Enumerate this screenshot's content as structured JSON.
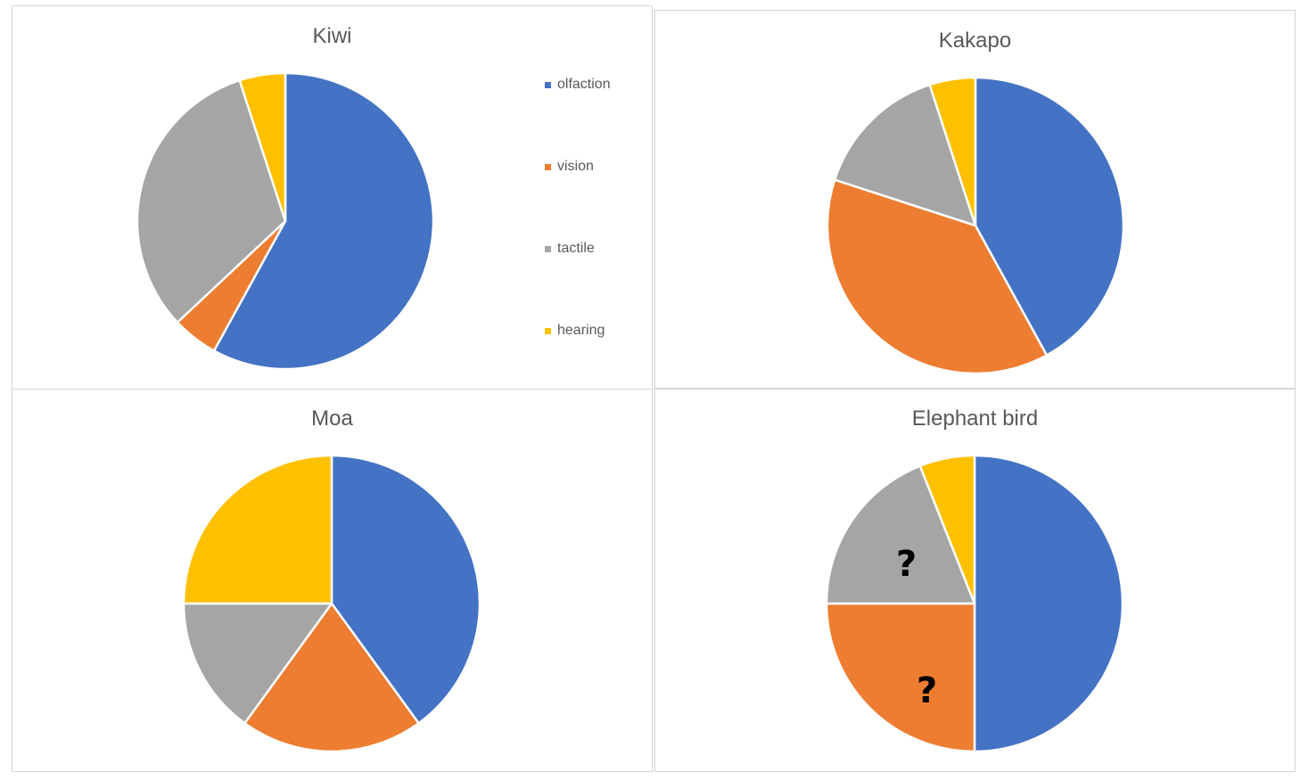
{
  "colors": {
    "olfaction": "#4472C4",
    "vision": "#ED7D31",
    "tactile": "#A5A5A5",
    "hearing": "#FFC000"
  },
  "legend": {
    "placement": "right",
    "entries": [
      "olfaction",
      "vision",
      "tactile",
      "hearing"
    ]
  },
  "chart_data": [
    {
      "type": "pie",
      "title": "Kiwi",
      "categories": [
        "olfaction",
        "vision",
        "tactile",
        "hearing"
      ],
      "values": [
        58,
        5,
        32,
        5
      ]
    },
    {
      "type": "pie",
      "title": "Kakapo",
      "categories": [
        "olfaction",
        "vision",
        "tactile",
        "hearing"
      ],
      "values": [
        42,
        38,
        15,
        5
      ]
    },
    {
      "type": "pie",
      "title": "Moa",
      "categories": [
        "olfaction",
        "vision",
        "tactile",
        "hearing"
      ],
      "values": [
        40,
        20,
        15,
        25
      ]
    },
    {
      "type": "pie",
      "title": "Elephant bird",
      "categories": [
        "olfaction",
        "vision",
        "tactile",
        "hearing"
      ],
      "values": [
        50,
        25,
        19,
        6
      ],
      "annotations": [
        "?",
        "?"
      ]
    }
  ]
}
